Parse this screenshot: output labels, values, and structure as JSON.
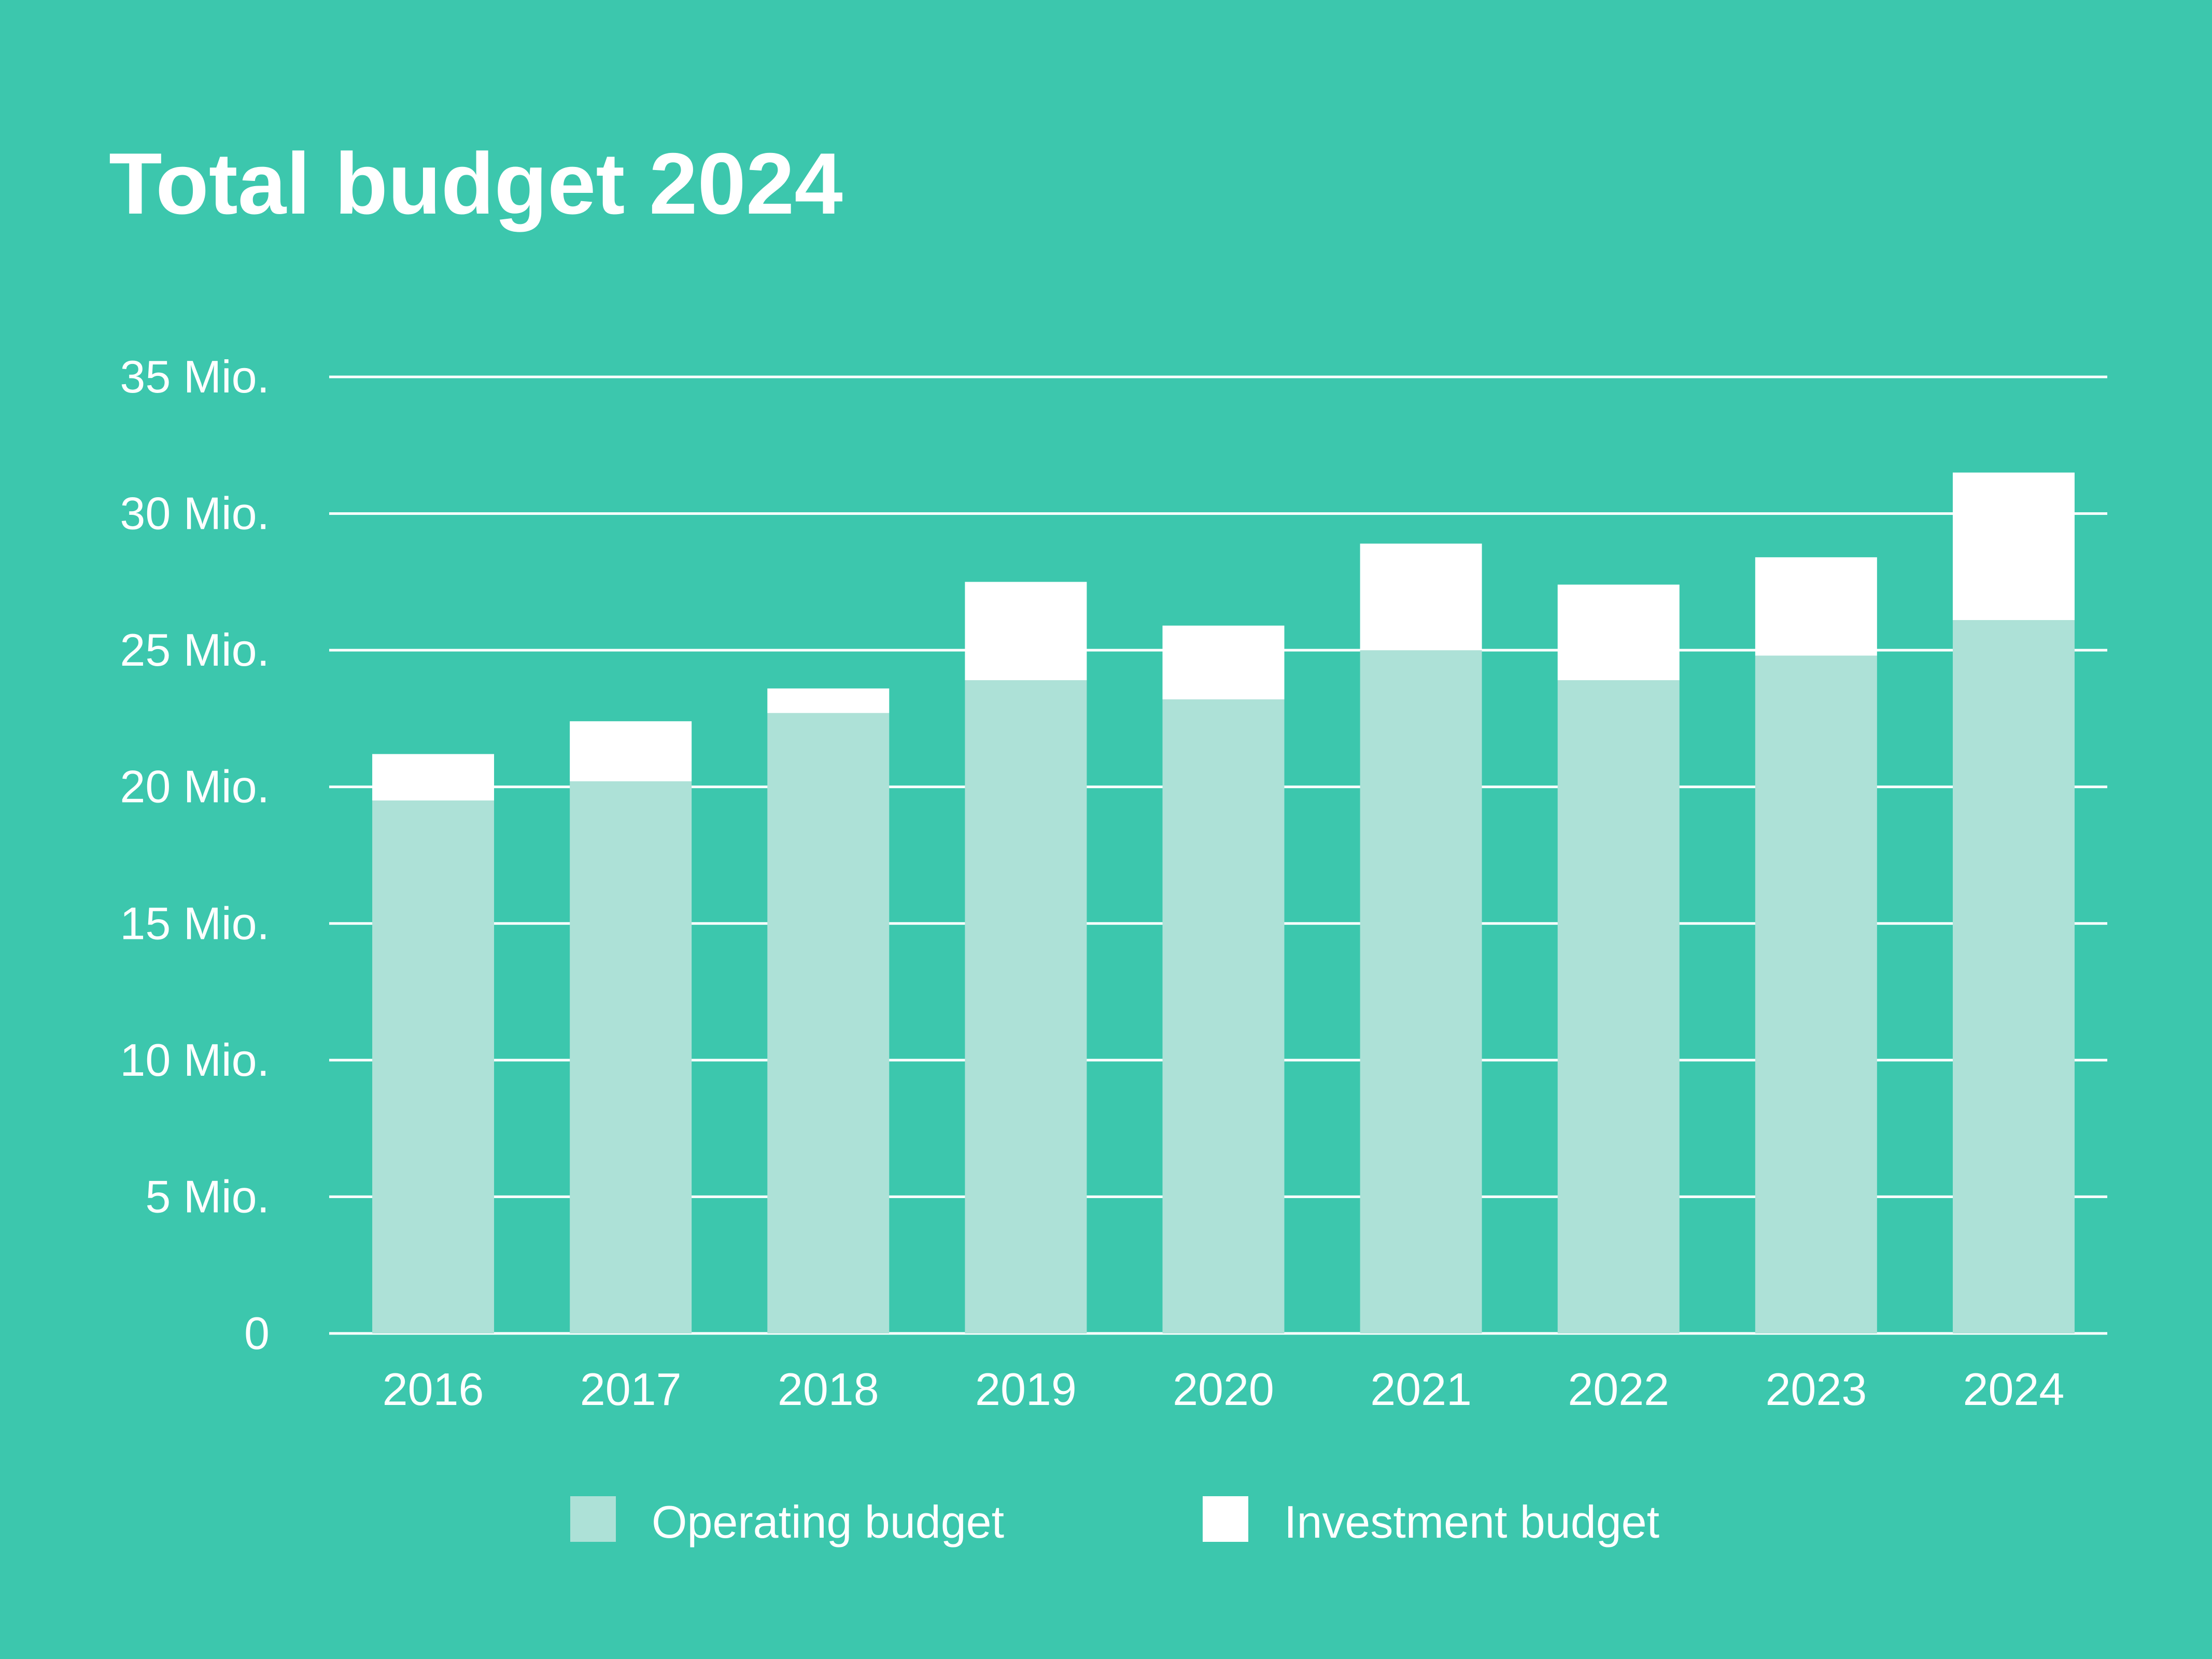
{
  "chart_data": {
    "type": "bar",
    "stacked": true,
    "title": "Total budget 2024",
    "categories": [
      "2016",
      "2017",
      "2018",
      "2019",
      "2020",
      "2021",
      "2022",
      "2023",
      "2024"
    ],
    "series": [
      {
        "name": "Operating budget",
        "color": "#ade1d7",
        "values": [
          19.5,
          20.2,
          22.7,
          23.9,
          23.2,
          25.0,
          23.9,
          24.8,
          26.1
        ]
      },
      {
        "name": "Investment budget",
        "color": "#ffffff",
        "values": [
          1.7,
          2.2,
          0.9,
          3.6,
          2.7,
          3.9,
          3.5,
          3.6,
          5.4
        ]
      }
    ],
    "y_ticks": [
      {
        "value": 0,
        "label": "0"
      },
      {
        "value": 5,
        "label": "5 Mio."
      },
      {
        "value": 10,
        "label": "10 Mio."
      },
      {
        "value": 15,
        "label": "15 Mio."
      },
      {
        "value": 20,
        "label": "20 Mio."
      },
      {
        "value": 25,
        "label": "25 Mio."
      },
      {
        "value": 30,
        "label": "30 Mio."
      },
      {
        "value": 35,
        "label": "35 Mio."
      }
    ],
    "ylim": [
      0,
      35
    ],
    "xlabel": "",
    "ylabel": "",
    "grid": true,
    "legend_position": "bottom-center"
  },
  "colors": {
    "background": "#3cc7ad",
    "gridline": "#ffffff",
    "text": "#ffffff"
  }
}
